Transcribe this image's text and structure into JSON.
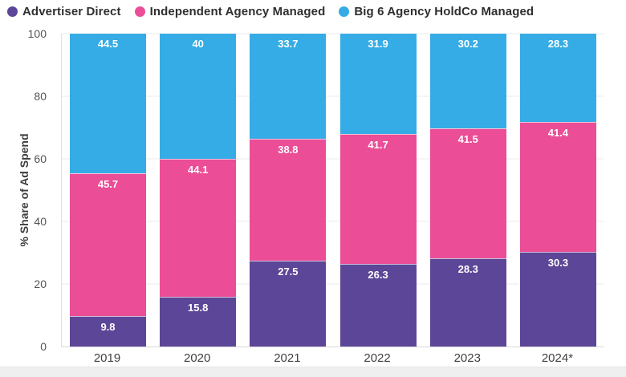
{
  "page": {
    "background_color": "#ffffff",
    "bottom_strip_color": "#efefef"
  },
  "chart_data": {
    "type": "bar",
    "variant": "stacked-vertical",
    "categories": [
      "2019",
      "2020",
      "2021",
      "2022",
      "2023",
      "2024*"
    ],
    "series": [
      {
        "name": "Advertiser Direct",
        "color": "#5c4697",
        "values": [
          9.8,
          15.8,
          27.5,
          26.3,
          28.3,
          30.3
        ]
      },
      {
        "name": "Independent Agency Managed",
        "color": "#eb4d96",
        "values": [
          45.7,
          44.1,
          38.8,
          41.7,
          41.5,
          41.4
        ]
      },
      {
        "name": "Big 6 Agency HoldCo Managed",
        "color": "#35ace5",
        "values": [
          44.5,
          40,
          33.7,
          31.9,
          30.2,
          28.3
        ]
      }
    ],
    "title": "",
    "xlabel": "",
    "ylabel": "% Share of Ad Spend",
    "ylim": [
      0,
      100
    ],
    "yticks": [
      0,
      20,
      40,
      60,
      80,
      100
    ],
    "grid": true,
    "legend_position": "top-left",
    "value_labels": "inside-top",
    "value_label_color": "#ffffff"
  }
}
